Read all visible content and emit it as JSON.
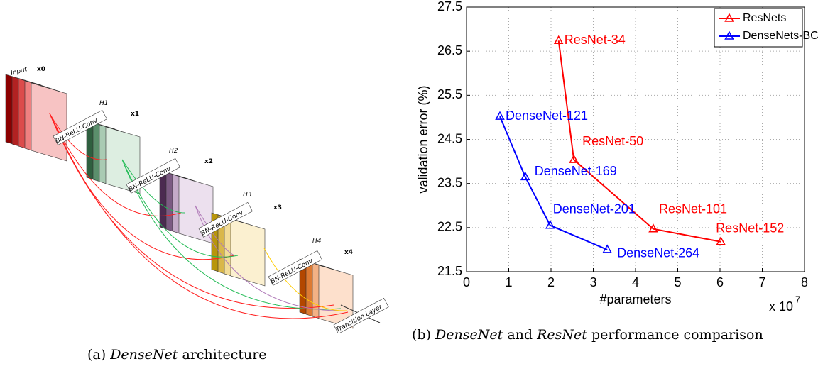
{
  "diagram": {
    "input": "Input",
    "x0": "x0",
    "x1": "x1",
    "x2": "x2",
    "x3": "x3",
    "x4": "x4",
    "h1": "H1",
    "h2": "H2",
    "h3": "H3",
    "h4": "H4",
    "conv": [
      "BN-ReLU-Conv",
      "BN-ReLU-Conv",
      "BN-ReLU-Conv",
      "BN-ReLU-Conv"
    ],
    "transition": "Transition Layer"
  },
  "captions": {
    "a": {
      "label": "(a)",
      "name": "DenseNet",
      "rest": "architecture"
    },
    "b": {
      "label": "(b)",
      "name": "DenseNet",
      "middle": "and",
      "name2": "ResNet",
      "rest": "performance comparison"
    }
  },
  "chart_data": {
    "type": "line",
    "xlabel": "#parameters",
    "ylabel": "validation error (%)",
    "x_multiplier": "x 10",
    "x_multiplier_exp": "7",
    "xlim": [
      0,
      8
    ],
    "xticks": [
      0,
      1,
      2,
      3,
      4,
      5,
      6,
      7,
      8
    ],
    "ylim": [
      21.5,
      27.5
    ],
    "yticks": [
      21.5,
      22.5,
      23.5,
      24.5,
      25.5,
      26.5,
      27.5
    ],
    "grid": true,
    "legend": "upper right",
    "series": [
      {
        "name": "ResNets",
        "color": "#ff0000",
        "x": [
          2.18,
          2.54,
          4.42,
          6.02
        ],
        "values": [
          26.74,
          24.04,
          22.47,
          22.18
        ],
        "point_labels": [
          "ResNet-34",
          "ResNet-50",
          "ResNet-101",
          "ResNet-152"
        ]
      },
      {
        "name": "DenseNets-BC",
        "color": "#0000ff",
        "x": [
          0.79,
          1.39,
          1.98,
          3.33
        ],
        "values": [
          25.02,
          23.65,
          22.55,
          22.0
        ],
        "point_labels": [
          "DenseNet-121",
          "DenseNet-169",
          "DenseNet-201",
          "DenseNet-264"
        ]
      }
    ]
  }
}
